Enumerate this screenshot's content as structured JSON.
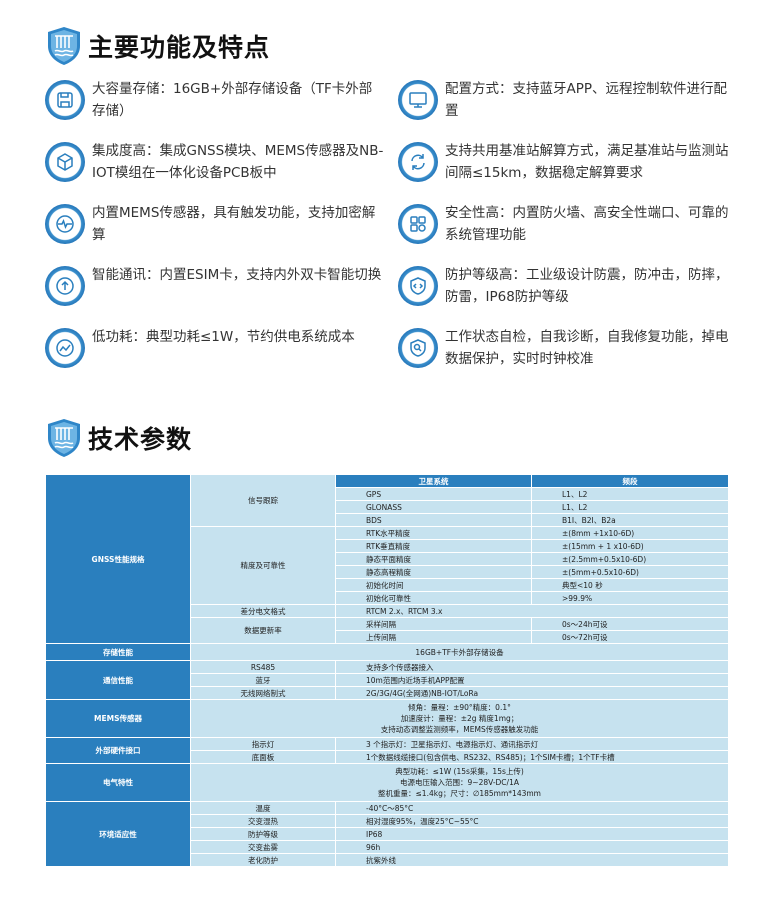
{
  "sections": {
    "features_title": "主要功能及特点",
    "specs_title": "技术参数"
  },
  "features": [
    {
      "icon": "floppy-disk-icon",
      "text": "大容量存储：16GB+外部存储设备（TF卡外部存储）"
    },
    {
      "icon": "monitor-icon",
      "text": "配置方式：支持蓝牙APP、远程控制软件进行配置"
    },
    {
      "icon": "cube-icon",
      "text": "集成度高：集成GNSS模块、MEMS传感器及NB-IOT模组在一体化设备PCB板中"
    },
    {
      "icon": "sync-icon",
      "text": "支持共用基准站解算方式，满足基准站与监测站间隔≤15km，数据稳定解算要求"
    },
    {
      "icon": "pulse-icon",
      "text": "内置MEMS传感器，具有触发功能，支持加密解算"
    },
    {
      "icon": "apps-icon",
      "text": "安全性高：内置防火墙、高安全性端口、可靠的系统管理功能"
    },
    {
      "icon": "upload-circle-icon",
      "text": "智能通讯：内置ESIM卡，支持内外双卡智能切换"
    },
    {
      "icon": "shield-code-icon",
      "text": "防护等级高：工业级设计防震，防冲击，防摔，防雷，IP68防护等级"
    },
    {
      "icon": "chart-line-icon",
      "text": "低功耗：典型功耗≤1W，节约供电系统成本"
    },
    {
      "icon": "shield-search-icon",
      "text": "工作状态自检，自我诊断，自我修复功能，掉电数据保护，实时时钟校准"
    }
  ],
  "spec_table": [
    {
      "label": "GNSS性能规格",
      "subs": [
        {
          "label": "信号跟踪",
          "header": [
            "卫星系统",
            "频段"
          ],
          "rows": [
            [
              "GPS",
              "L1、L2"
            ],
            [
              "GLONASS",
              "L1、L2"
            ],
            [
              "BDS",
              "B1I、B2I、B2a"
            ]
          ]
        },
        {
          "label": "精度及可靠性",
          "rows": [
            [
              "RTK水平精度",
              "±(8mm +1x10-6D)"
            ],
            [
              "RTK垂直精度",
              "±(15mm + 1 x10-6D)"
            ],
            [
              "静态平面精度",
              "±(2.5mm+0.5x10-6D)"
            ],
            [
              "静态高程精度",
              "±(5mm+0.5x10-6D)"
            ],
            [
              "初始化时间",
              "典型<10 秒"
            ],
            [
              "初始化可靠性",
              ">99.9%"
            ]
          ]
        },
        {
          "label": "差分电文格式",
          "value": "RTCM 2.x、RTCM 3.x"
        },
        {
          "label": "数据更新率",
          "rows": [
            [
              "采样间隔",
              "0s～24h可设"
            ],
            [
              "上传间隔",
              "0s～72h可设"
            ]
          ]
        }
      ]
    },
    {
      "label": "存储性能",
      "lines": [
        "16GB+TF卡外部存储设备"
      ]
    },
    {
      "label": "通信性能",
      "subs": [
        {
          "label": "RS485",
          "value": "支持多个传感器接入"
        },
        {
          "label": "蓝牙",
          "value": "10m范围内近场手机APP配置"
        },
        {
          "label": "无线网络制式",
          "value": "2G/3G/4G(全网通)NB-IOT/LoRa"
        }
      ]
    },
    {
      "label": "MEMS传感器",
      "lines": [
        "倾角：量程：±90°精度：0.1°",
        "加速度计：量程：±2g 精度1mg；",
        "支持动态调整监测频率，MEMS传感器触发功能"
      ]
    },
    {
      "label": "外部硬件接口",
      "subs": [
        {
          "label": "指示灯",
          "value": "3 个指示灯：卫星指示灯、电源指示灯、通讯指示灯"
        },
        {
          "label": "底面板",
          "value": "1个数据线缆接口(包含供电、RS232、RS485)；1个SIM卡槽；1个TF卡槽"
        }
      ]
    },
    {
      "label": "电气特性",
      "lines": [
        "典型功耗：≤1W (15s采集，15s上传)",
        "电源电压输入范围：9~28V-DC/1A",
        "整机重量：≤1.4kg；尺寸：∅185mm*143mm"
      ]
    },
    {
      "label": "环境适应性",
      "subs": [
        {
          "label": "温度",
          "value": "-40°C～85°C"
        },
        {
          "label": "交变湿热",
          "value": "相对湿度95%，温度25°C~55°C"
        },
        {
          "label": "防护等级",
          "value": "IP68"
        },
        {
          "label": "交变盐雾",
          "value": "96h"
        },
        {
          "label": "老化防护",
          "value": "抗紫外线"
        }
      ]
    }
  ],
  "colors": {
    "accent": "#2a7fbe",
    "cell": "#c6e2ef"
  }
}
